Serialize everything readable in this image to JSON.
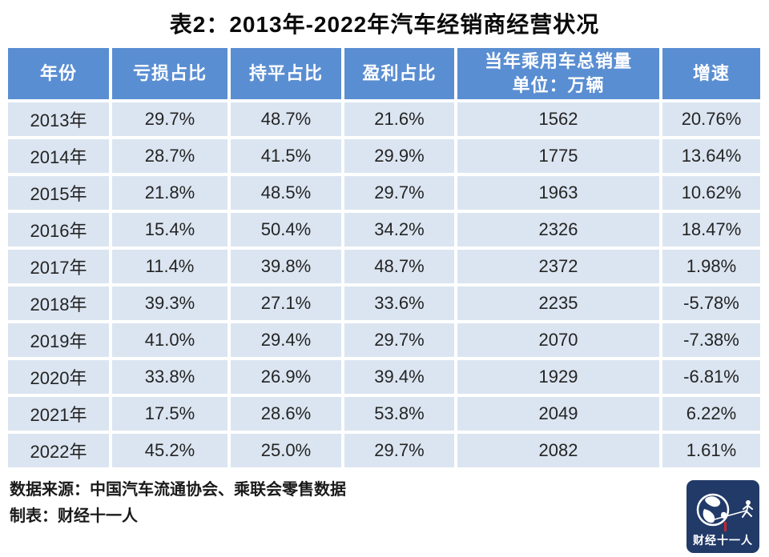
{
  "title": "表2：2013年-2022年汽车经销商经营状况",
  "table": {
    "columns": [
      {
        "key": "year",
        "label": "年份"
      },
      {
        "key": "loss",
        "label": "亏损占比"
      },
      {
        "key": "flat",
        "label": "持平占比"
      },
      {
        "key": "profit",
        "label": "盈利占比"
      },
      {
        "key": "sales",
        "label": "当年乘用车总销量",
        "sublabel": "单位：万辆"
      },
      {
        "key": "growth",
        "label": "增速"
      }
    ],
    "rows": [
      {
        "year": "2013年",
        "loss": "29.7%",
        "flat": "48.7%",
        "profit": "21.6%",
        "sales": "1562",
        "growth": "20.76%"
      },
      {
        "year": "2014年",
        "loss": "28.7%",
        "flat": "41.5%",
        "profit": "29.9%",
        "sales": "1775",
        "growth": "13.64%"
      },
      {
        "year": "2015年",
        "loss": "21.8%",
        "flat": "48.5%",
        "profit": "29.7%",
        "sales": "1963",
        "growth": "10.62%"
      },
      {
        "year": "2016年",
        "loss": "15.4%",
        "flat": "50.4%",
        "profit": "34.2%",
        "sales": "2326",
        "growth": "18.47%"
      },
      {
        "year": "2017年",
        "loss": "11.4%",
        "flat": "39.8%",
        "profit": "48.7%",
        "sales": "2372",
        "growth": "1.98%"
      },
      {
        "year": "2018年",
        "loss": "39.3%",
        "flat": "27.1%",
        "profit": "33.6%",
        "sales": "2235",
        "growth": "-5.78%"
      },
      {
        "year": "2019年",
        "loss": "41.0%",
        "flat": "29.4%",
        "profit": "29.7%",
        "sales": "2070",
        "growth": "-7.38%"
      },
      {
        "year": "2020年",
        "loss": "33.8%",
        "flat": "26.9%",
        "profit": "39.4%",
        "sales": "1929",
        "growth": "-6.81%"
      },
      {
        "year": "2021年",
        "loss": "17.5%",
        "flat": "28.6%",
        "profit": "53.8%",
        "sales": "2049",
        "growth": "6.22%"
      },
      {
        "year": "2022年",
        "loss": "45.2%",
        "flat": "25.0%",
        "profit": "29.7%",
        "sales": "2082",
        "growth": "1.61%"
      }
    ]
  },
  "footer": {
    "source": "数据来源：中国汽车流通协会、乘联会零售数据",
    "credit": "制表：财经十一人"
  },
  "logo": {
    "text": "财经十一人"
  },
  "colors": {
    "header_bg": "#5a8ed2",
    "row_bg": "#dbe5f1",
    "header_text": "#ffffff",
    "cell_text": "#242424",
    "logo_bg": "#223a68",
    "logo_accent": "#c1272d"
  },
  "chart_data": {
    "type": "table",
    "title": "表2：2013年-2022年汽车经销商经营状况",
    "categories": [
      "2013年",
      "2014年",
      "2015年",
      "2016年",
      "2017年",
      "2018年",
      "2019年",
      "2020年",
      "2021年",
      "2022年"
    ],
    "series": [
      {
        "name": "亏损占比(%)",
        "values": [
          29.7,
          28.7,
          21.8,
          15.4,
          11.4,
          39.3,
          41.0,
          33.8,
          17.5,
          45.2
        ]
      },
      {
        "name": "持平占比(%)",
        "values": [
          48.7,
          41.5,
          48.5,
          50.4,
          39.8,
          27.1,
          29.4,
          26.9,
          28.6,
          25.0
        ]
      },
      {
        "name": "盈利占比(%)",
        "values": [
          21.6,
          29.9,
          29.7,
          34.2,
          48.7,
          33.6,
          29.7,
          39.4,
          53.8,
          29.7
        ]
      },
      {
        "name": "当年乘用车总销量(万辆)",
        "values": [
          1562,
          1775,
          1963,
          2326,
          2372,
          2235,
          2070,
          1929,
          2049,
          2082
        ]
      },
      {
        "name": "增速(%)",
        "values": [
          20.76,
          13.64,
          10.62,
          18.47,
          1.98,
          -5.78,
          -7.38,
          -6.81,
          6.22,
          1.61
        ]
      }
    ]
  }
}
